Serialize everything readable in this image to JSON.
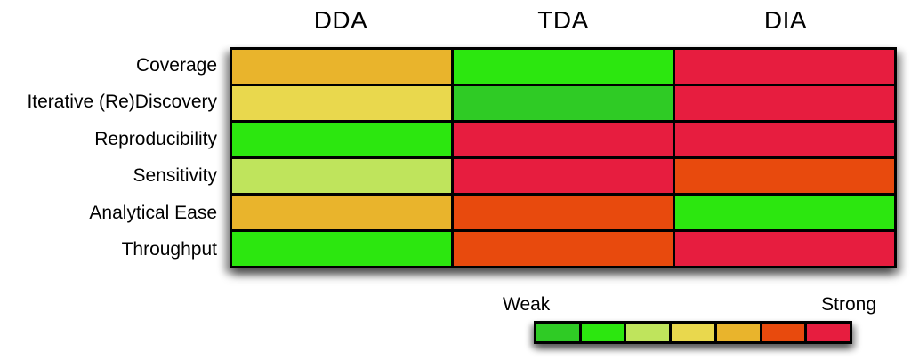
{
  "figure": {
    "columns": [
      "DDA",
      "TDA",
      "DIA"
    ],
    "row_labels": [
      "Coverage",
      "Iterative (Re)Discovery",
      "Reproducibility",
      "Sensitivity",
      "Analytical Ease",
      "Throughput"
    ]
  },
  "legend": {
    "weak_label": "Weak",
    "strong_label": "Strong"
  },
  "palette": {
    "border": "#000000",
    "scale_hex": [
      "#2FCB25",
      "#2CE70F",
      "#BFE45C",
      "#E9D84D",
      "#E9B42C",
      "#E84A0D",
      "#E71D3F"
    ]
  },
  "chart_data": {
    "type": "heatmap",
    "title": "",
    "columns": [
      "DDA",
      "TDA",
      "DIA"
    ],
    "rows": [
      "Coverage",
      "Iterative (Re)Discovery",
      "Reproducibility",
      "Sensitivity",
      "Analytical Ease",
      "Throughput"
    ],
    "scale": {
      "levels": 7,
      "direction": "weak_to_strong",
      "left_label": "Weak",
      "right_label": "Strong",
      "colors_hex": [
        "#2FCB25",
        "#2CE70F",
        "#BFE45C",
        "#E9D84D",
        "#E9B42C",
        "#E84A0D",
        "#E71D3F"
      ]
    },
    "values_levels": [
      [
        5,
        2,
        7
      ],
      [
        4,
        1,
        7
      ],
      [
        2,
        7,
        7
      ],
      [
        3,
        7,
        6
      ],
      [
        5,
        6,
        2
      ],
      [
        2,
        6,
        7
      ]
    ],
    "legend_position": "bottom-right",
    "grid": true
  }
}
